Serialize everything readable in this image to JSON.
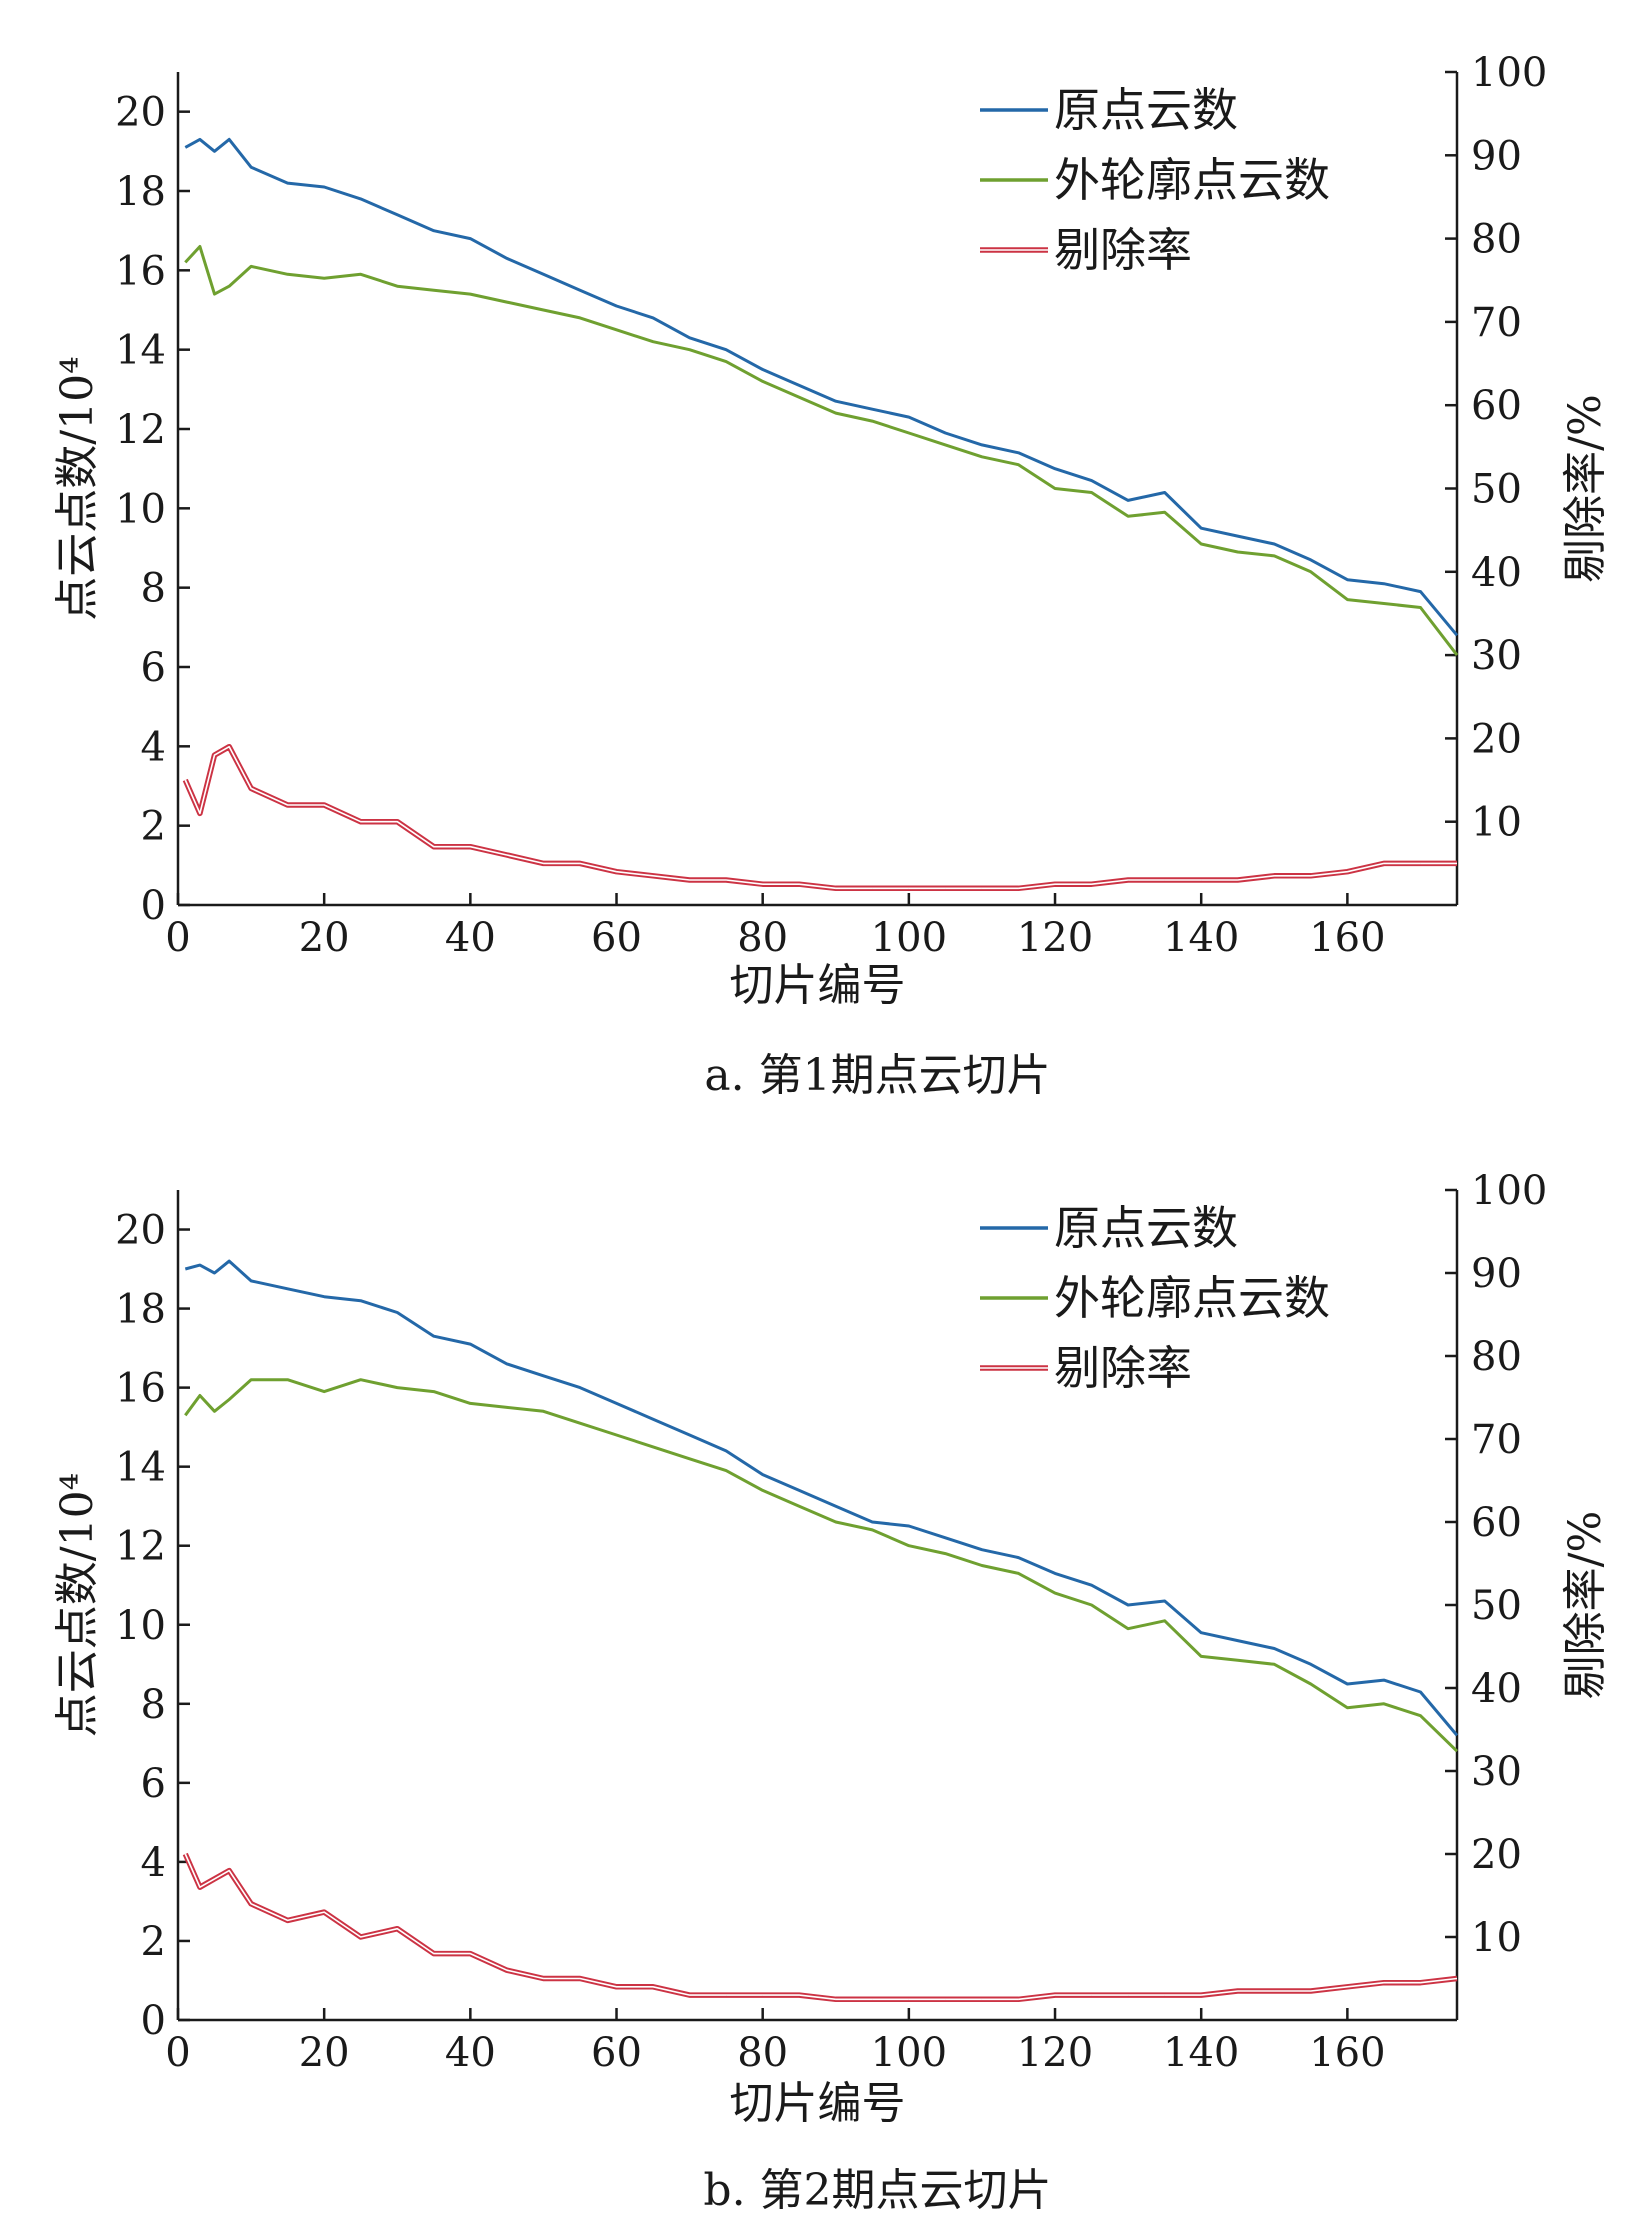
{
  "colors": {
    "original": "#2468a8",
    "outline": "#6fa030",
    "removal": "#cc3344",
    "axis": "#1a1a1a"
  },
  "chart_data": [
    {
      "type": "line",
      "caption": "a. 第1期点云切片",
      "xlabel": "切片编号",
      "ylabel_left": "点云点数/10⁴",
      "ylabel_right": "剔除率/%",
      "xlim": [
        0,
        175
      ],
      "ylim_left": [
        0,
        21
      ],
      "ylim_right": [
        0,
        100
      ],
      "xticks": [
        0,
        20,
        40,
        60,
        80,
        100,
        120,
        140,
        160
      ],
      "yticks_left": [
        0,
        2,
        4,
        6,
        8,
        10,
        12,
        14,
        16,
        18,
        20
      ],
      "yticks_right": [
        10,
        20,
        30,
        40,
        50,
        60,
        70,
        80,
        90,
        100
      ],
      "legend_position": "top-right",
      "series": [
        {
          "name": "原点云数",
          "axis": "left",
          "color": "#2468a8",
          "x": [
            1,
            3,
            5,
            7,
            10,
            15,
            20,
            25,
            30,
            35,
            40,
            45,
            50,
            55,
            60,
            65,
            70,
            75,
            80,
            85,
            90,
            95,
            100,
            105,
            110,
            115,
            120,
            125,
            130,
            135,
            140,
            145,
            150,
            155,
            160,
            165,
            170,
            175
          ],
          "values": [
            19.1,
            19.3,
            19.0,
            19.3,
            18.6,
            18.2,
            18.1,
            17.8,
            17.4,
            17.0,
            16.8,
            16.3,
            15.9,
            15.5,
            15.1,
            14.8,
            14.3,
            14.0,
            13.5,
            13.1,
            12.7,
            12.5,
            12.3,
            11.9,
            11.6,
            11.4,
            11.0,
            10.7,
            10.2,
            10.4,
            9.5,
            9.3,
            9.1,
            8.7,
            8.2,
            8.1,
            7.9,
            6.8
          ]
        },
        {
          "name": "外轮廓点云数",
          "axis": "left",
          "color": "#6fa030",
          "x": [
            1,
            3,
            5,
            7,
            10,
            15,
            20,
            25,
            30,
            35,
            40,
            45,
            50,
            55,
            60,
            65,
            70,
            75,
            80,
            85,
            90,
            95,
            100,
            105,
            110,
            115,
            120,
            125,
            130,
            135,
            140,
            145,
            150,
            155,
            160,
            165,
            170,
            175
          ],
          "values": [
            16.2,
            16.6,
            15.4,
            15.6,
            16.1,
            15.9,
            15.8,
            15.9,
            15.6,
            15.5,
            15.4,
            15.2,
            15.0,
            14.8,
            14.5,
            14.2,
            14.0,
            13.7,
            13.2,
            12.8,
            12.4,
            12.2,
            11.9,
            11.6,
            11.3,
            11.1,
            10.5,
            10.4,
            9.8,
            9.9,
            9.1,
            8.9,
            8.8,
            8.4,
            7.7,
            7.6,
            7.5,
            6.3
          ]
        },
        {
          "name": "剔除率",
          "axis": "right",
          "color": "#cc3344",
          "x": [
            1,
            3,
            5,
            7,
            10,
            15,
            20,
            25,
            30,
            35,
            40,
            45,
            50,
            55,
            60,
            65,
            70,
            75,
            80,
            85,
            90,
            95,
            100,
            105,
            110,
            115,
            120,
            125,
            130,
            135,
            140,
            145,
            150,
            155,
            160,
            165,
            170,
            175
          ],
          "values": [
            15,
            11,
            18,
            19,
            14,
            12,
            12,
            10,
            10,
            7,
            7,
            6,
            5,
            5,
            4,
            3.5,
            3,
            3,
            2.5,
            2.5,
            2,
            2,
            2,
            2,
            2,
            2,
            2.5,
            2.5,
            3,
            3,
            3,
            3,
            3.5,
            3.5,
            4,
            5,
            5,
            5
          ]
        }
      ]
    },
    {
      "type": "line",
      "caption": "b. 第2期点云切片",
      "xlabel": "切片编号",
      "ylabel_left": "点云点数/10⁴",
      "ylabel_right": "剔除率/%",
      "xlim": [
        0,
        175
      ],
      "ylim_left": [
        0,
        21
      ],
      "ylim_right": [
        0,
        100
      ],
      "xticks": [
        0,
        20,
        40,
        60,
        80,
        100,
        120,
        140,
        160
      ],
      "yticks_left": [
        0,
        2,
        4,
        6,
        8,
        10,
        12,
        14,
        16,
        18,
        20
      ],
      "yticks_right": [
        10,
        20,
        30,
        40,
        50,
        60,
        70,
        80,
        90,
        100
      ],
      "legend_position": "top-right",
      "series": [
        {
          "name": "原点云数",
          "axis": "left",
          "color": "#2468a8",
          "x": [
            1,
            3,
            5,
            7,
            10,
            15,
            20,
            25,
            30,
            35,
            40,
            45,
            50,
            55,
            60,
            65,
            70,
            75,
            80,
            85,
            90,
            95,
            100,
            105,
            110,
            115,
            120,
            125,
            130,
            135,
            140,
            145,
            150,
            155,
            160,
            165,
            170,
            175
          ],
          "values": [
            19.0,
            19.1,
            18.9,
            19.2,
            18.7,
            18.5,
            18.3,
            18.2,
            17.9,
            17.3,
            17.1,
            16.6,
            16.3,
            16.0,
            15.6,
            15.2,
            14.8,
            14.4,
            13.8,
            13.4,
            13.0,
            12.6,
            12.5,
            12.2,
            11.9,
            11.7,
            11.3,
            11.0,
            10.5,
            10.6,
            9.8,
            9.6,
            9.4,
            9.0,
            8.5,
            8.6,
            8.3,
            7.2
          ]
        },
        {
          "name": "外轮廓点云数",
          "axis": "left",
          "color": "#6fa030",
          "x": [
            1,
            3,
            5,
            7,
            10,
            15,
            20,
            25,
            30,
            35,
            40,
            45,
            50,
            55,
            60,
            65,
            70,
            75,
            80,
            85,
            90,
            95,
            100,
            105,
            110,
            115,
            120,
            125,
            130,
            135,
            140,
            145,
            150,
            155,
            160,
            165,
            170,
            175
          ],
          "values": [
            15.3,
            15.8,
            15.4,
            15.7,
            16.2,
            16.2,
            15.9,
            16.2,
            16.0,
            15.9,
            15.6,
            15.5,
            15.4,
            15.1,
            14.8,
            14.5,
            14.2,
            13.9,
            13.4,
            13.0,
            12.6,
            12.4,
            12.0,
            11.8,
            11.5,
            11.3,
            10.8,
            10.5,
            9.9,
            10.1,
            9.2,
            9.1,
            9.0,
            8.5,
            7.9,
            8.0,
            7.7,
            6.8
          ]
        },
        {
          "name": "剔除率",
          "axis": "right",
          "color": "#cc3344",
          "x": [
            1,
            3,
            5,
            7,
            10,
            15,
            20,
            25,
            30,
            35,
            40,
            45,
            50,
            55,
            60,
            65,
            70,
            75,
            80,
            85,
            90,
            95,
            100,
            105,
            110,
            115,
            120,
            125,
            130,
            135,
            140,
            145,
            150,
            155,
            160,
            165,
            170,
            175
          ],
          "values": [
            20,
            16,
            17,
            18,
            14,
            12,
            13,
            10,
            11,
            8,
            8,
            6,
            5,
            5,
            4,
            4,
            3,
            3,
            3,
            3,
            2.5,
            2.5,
            2.5,
            2.5,
            2.5,
            2.5,
            3,
            3,
            3,
            3,
            3,
            3.5,
            3.5,
            3.5,
            4,
            4.5,
            4.5,
            5
          ]
        }
      ]
    }
  ]
}
